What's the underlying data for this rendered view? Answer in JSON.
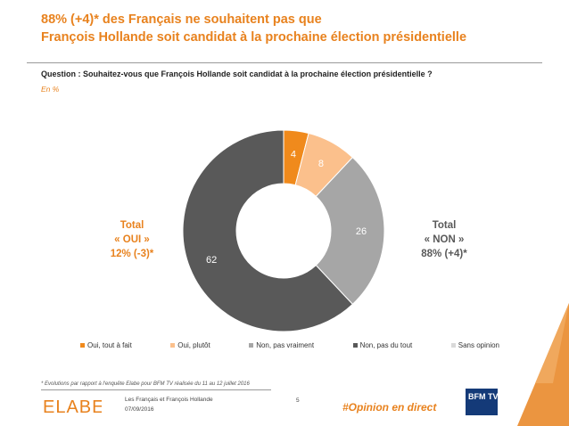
{
  "title": {
    "line1": "88% (+4)* des Français ne souhaitent pas que",
    "line2": "François Hollande soit candidat à la prochaine élection présidentielle"
  },
  "question": "Question : Souhaitez-vous que François Hollande soit candidat à la prochaine élection présidentielle ?",
  "unit": "En %",
  "totals": {
    "oui": {
      "line1": "Total",
      "line2": "« OUI »",
      "line3": "12% (-3)*"
    },
    "non": {
      "line1": "Total",
      "line2": "« NON »",
      "line3": "88% (+4)*"
    }
  },
  "chart_data": {
    "type": "pie",
    "variant": "donut",
    "categories": [
      "Oui, tout à fait",
      "Oui, plutôt",
      "Non, pas vraiment",
      "Non, pas du tout",
      "Sans opinion"
    ],
    "values": [
      4,
      8,
      26,
      62,
      0
    ],
    "colors": [
      "#f08a1c",
      "#fbc08c",
      "#a6a6a6",
      "#595959",
      "#d9d9d9"
    ],
    "legend_position": "bottom"
  },
  "footnote": "* Evolutions par rapport à l'enquête Elabe pour BFM TV réalisée du 11 au 12 juillet 2016",
  "footer": {
    "brand": "ELABE",
    "study": "Les Français et François Hollande",
    "date": "07/09/2016",
    "page": "5",
    "hashtag": "#Opinion en direct",
    "partner": "BFM TV"
  }
}
